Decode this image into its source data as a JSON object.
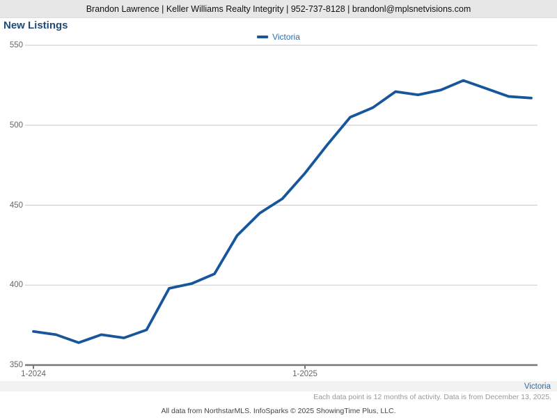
{
  "header": {
    "contact_line": "Brandon Lawrence | Keller Williams Realty Integrity | 952-737-8128 | brandonl@mplsnetvisions.com"
  },
  "title": "New Listings",
  "legend": {
    "label": "Victoria"
  },
  "colors": {
    "line": "#17569b",
    "legend_text": "#2e6ca8",
    "grid": "#c9c9c9",
    "axis": "#777777",
    "tick_text": "#666666",
    "title_text": "#1e4a75"
  },
  "chart_data": {
    "type": "line",
    "title": "New Listings",
    "x": [
      "1-2024",
      "2-2024",
      "3-2024",
      "4-2024",
      "5-2024",
      "6-2024",
      "7-2024",
      "8-2024",
      "9-2024",
      "10-2024",
      "11-2024",
      "12-2024",
      "1-2025",
      "2-2025",
      "3-2025",
      "4-2025",
      "5-2025",
      "6-2025",
      "7-2025",
      "8-2025",
      "9-2025",
      "10-2025",
      "11-2025"
    ],
    "series": [
      {
        "name": "Victoria",
        "color": "#17569b",
        "values": [
          371,
          369,
          364,
          369,
          367,
          372,
          398,
          401,
          407,
          431,
          445,
          454,
          470,
          488,
          505,
          511,
          521,
          519,
          522,
          528,
          523,
          518,
          517
        ]
      }
    ],
    "xticks": [
      {
        "label": "1-2024",
        "index": 0
      },
      {
        "label": "1-2025",
        "index": 12
      }
    ],
    "yticks": [
      350,
      400,
      450,
      500,
      550
    ],
    "ylim": [
      350,
      550
    ],
    "grid": "horizontal",
    "legend_position": "top-center"
  },
  "footer": {
    "series_label": "Victoria",
    "note_right": "Each data point is 12 months of activity. Data is from December 13, 2025.",
    "note_center": "All data from NorthstarMLS. InfoSparks © 2025 ShowingTime Plus, LLC."
  }
}
